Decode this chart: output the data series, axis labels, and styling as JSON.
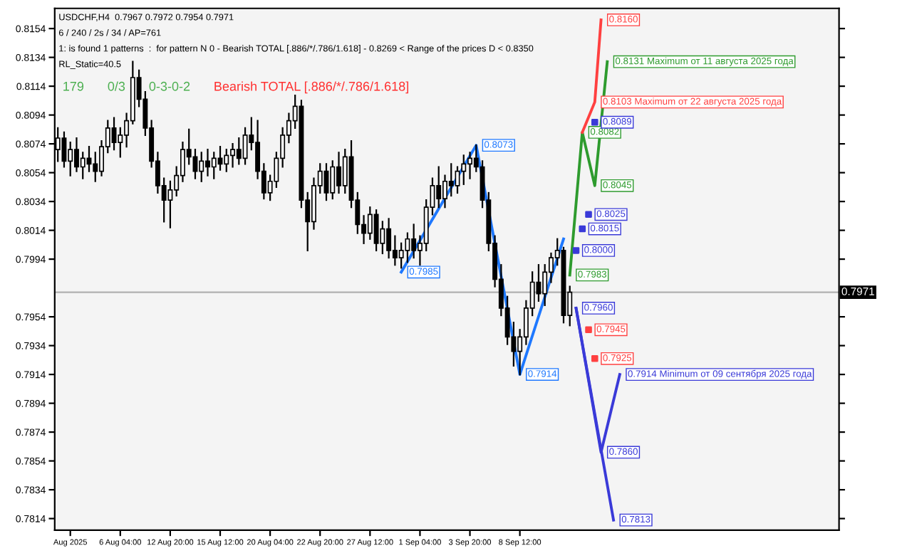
{
  "chart_data": {
    "type": "candlestick",
    "categories": [
      null,
      null,
      "Aug 2025",
      null,
      null,
      null,
      null,
      null,
      null,
      null,
      "6 Aug 04:00",
      null,
      null,
      null,
      null,
      null,
      null,
      null,
      "12 Aug 20:00",
      null,
      null,
      null,
      null,
      null,
      null,
      null,
      "15 Aug 12:00",
      null,
      null,
      null,
      null,
      null,
      null,
      null,
      "20 Aug 04:00",
      null,
      null,
      null,
      null,
      null,
      null,
      null,
      "22 Aug 20:00",
      null,
      null,
      null,
      null,
      null,
      null,
      null,
      "27 Aug 12:00",
      null,
      null,
      null,
      null,
      null,
      null,
      null,
      "1 Sep 04:00",
      null,
      null,
      null,
      null,
      null,
      null,
      null,
      "3 Sep 20:00",
      null,
      null,
      null,
      null,
      null,
      null,
      null,
      "8 Sep 12:00",
      null,
      null,
      null,
      null,
      null,
      null,
      null,
      null,
      null,
      null,
      null,
      null,
      null,
      null,
      null,
      null,
      null
    ],
    "ohlc": [
      [
        0.807,
        0.8085,
        0.8062,
        0.8078
      ],
      [
        0.8078,
        0.8082,
        0.8058,
        0.8062
      ],
      [
        0.8062,
        0.8075,
        0.8052,
        0.807
      ],
      [
        0.807,
        0.8078,
        0.8055,
        0.8058
      ],
      [
        0.8058,
        0.8068,
        0.805,
        0.8064
      ],
      [
        0.8064,
        0.8072,
        0.8055,
        0.806
      ],
      [
        0.806,
        0.8068,
        0.8048,
        0.8055
      ],
      [
        0.8055,
        0.8076,
        0.8052,
        0.8072
      ],
      [
        0.8072,
        0.809,
        0.8068,
        0.8085
      ],
      [
        0.8085,
        0.8092,
        0.807,
        0.8075
      ],
      [
        0.8075,
        0.8085,
        0.8065,
        0.808
      ],
      [
        0.808,
        0.8095,
        0.8072,
        0.809
      ],
      [
        0.809,
        0.8131,
        0.8088,
        0.812
      ],
      [
        0.812,
        0.8125,
        0.81,
        0.8105
      ],
      [
        0.8105,
        0.811,
        0.808,
        0.8085
      ],
      [
        0.8085,
        0.809,
        0.8058,
        0.8062
      ],
      [
        0.8062,
        0.8068,
        0.804,
        0.8045
      ],
      [
        0.8045,
        0.805,
        0.802,
        0.8035
      ],
      [
        0.8035,
        0.8048,
        0.8016,
        0.8042
      ],
      [
        0.8042,
        0.8058,
        0.8038,
        0.8052
      ],
      [
        0.8052,
        0.8075,
        0.8048,
        0.807
      ],
      [
        0.807,
        0.8084,
        0.806,
        0.8065
      ],
      [
        0.8065,
        0.807,
        0.805,
        0.8055
      ],
      [
        0.8055,
        0.8068,
        0.8048,
        0.8062
      ],
      [
        0.8062,
        0.807,
        0.8052,
        0.8058
      ],
      [
        0.8058,
        0.8068,
        0.805,
        0.8064
      ],
      [
        0.8064,
        0.8072,
        0.8056,
        0.806
      ],
      [
        0.806,
        0.807,
        0.8055,
        0.8066
      ],
      [
        0.8066,
        0.8074,
        0.8058,
        0.807
      ],
      [
        0.807,
        0.8078,
        0.806,
        0.8064
      ],
      [
        0.8064,
        0.8085,
        0.806,
        0.808
      ],
      [
        0.808,
        0.8092,
        0.807,
        0.8075
      ],
      [
        0.8075,
        0.809,
        0.805,
        0.8055
      ],
      [
        0.8055,
        0.806,
        0.8036,
        0.804
      ],
      [
        0.804,
        0.8052,
        0.8035,
        0.8048
      ],
      [
        0.8048,
        0.8068,
        0.8044,
        0.8064
      ],
      [
        0.8064,
        0.8085,
        0.8058,
        0.808
      ],
      [
        0.808,
        0.8095,
        0.8075,
        0.809
      ],
      [
        0.809,
        0.8108,
        0.8085,
        0.81
      ],
      [
        0.81,
        0.8104,
        0.803,
        0.8035
      ],
      [
        0.8035,
        0.804,
        0.8,
        0.802
      ],
      [
        0.802,
        0.805,
        0.8015,
        0.8045
      ],
      [
        0.8045,
        0.806,
        0.804,
        0.8055
      ],
      [
        0.8055,
        0.806,
        0.8035,
        0.804
      ],
      [
        0.804,
        0.8062,
        0.8036,
        0.8058
      ],
      [
        0.8058,
        0.8068,
        0.804,
        0.8045
      ],
      [
        0.8045,
        0.807,
        0.804,
        0.8065
      ],
      [
        0.8065,
        0.8076,
        0.803,
        0.8035
      ],
      [
        0.8035,
        0.804,
        0.8012,
        0.8018
      ],
      [
        0.8018,
        0.8024,
        0.8005,
        0.8012
      ],
      [
        0.8012,
        0.803,
        0.8008,
        0.8025
      ],
      [
        0.8025,
        0.8028,
        0.8,
        0.8005
      ],
      [
        0.8005,
        0.802,
        0.7998,
        0.8015
      ],
      [
        0.8015,
        0.8022,
        0.7995,
        0.8
      ],
      [
        0.8,
        0.801,
        0.799,
        0.7995
      ],
      [
        0.7995,
        0.8005,
        0.7988,
        0.8
      ],
      [
        0.8,
        0.8012,
        0.7992,
        0.8008
      ],
      [
        0.8008,
        0.8018,
        0.7995,
        0.8
      ],
      [
        0.8,
        0.801,
        0.799,
        0.8005
      ],
      [
        0.8005,
        0.8035,
        0.8,
        0.803
      ],
      [
        0.803,
        0.805,
        0.8025,
        0.8045
      ],
      [
        0.8045,
        0.8058,
        0.803,
        0.8036
      ],
      [
        0.8036,
        0.8052,
        0.803,
        0.8048
      ],
      [
        0.8048,
        0.806,
        0.8038,
        0.8045
      ],
      [
        0.8045,
        0.8058,
        0.804,
        0.8055
      ],
      [
        0.8055,
        0.8066,
        0.8046,
        0.806
      ],
      [
        0.806,
        0.8068,
        0.805,
        0.8064
      ],
      [
        0.8064,
        0.8073,
        0.8055,
        0.8058
      ],
      [
        0.8058,
        0.8062,
        0.803,
        0.8035
      ],
      [
        0.8035,
        0.804,
        0.8,
        0.8005
      ],
      [
        0.8005,
        0.801,
        0.7975,
        0.798
      ],
      [
        0.798,
        0.799,
        0.7955,
        0.796
      ],
      [
        0.796,
        0.7968,
        0.7935,
        0.794
      ],
      [
        0.794,
        0.795,
        0.792,
        0.793
      ],
      [
        0.793,
        0.7945,
        0.7914,
        0.794
      ],
      [
        0.794,
        0.7965,
        0.7935,
        0.796
      ],
      [
        0.796,
        0.7985,
        0.7955,
        0.7978
      ],
      [
        0.7978,
        0.799,
        0.7965,
        0.797
      ],
      [
        0.797,
        0.799,
        0.7962,
        0.7985
      ],
      [
        0.7985,
        0.7998,
        0.7978,
        0.7995
      ],
      [
        0.7995,
        0.8008,
        0.799,
        0.8
      ],
      [
        0.8,
        0.8002,
        0.795,
        0.7955
      ],
      [
        0.7955,
        0.7975,
        0.7948,
        0.7971
      ],
      null,
      null,
      null,
      null,
      null,
      null,
      null,
      null,
      null
    ],
    "series": [
      {
        "type": "line",
        "color": "#1e78ff",
        "values": [
          null,
          null,
          null,
          null,
          null,
          null,
          null,
          null,
          null,
          null,
          null,
          null,
          null,
          null,
          null,
          null,
          null,
          null,
          null,
          null,
          null,
          null,
          null,
          null,
          null,
          null,
          null,
          null,
          null,
          null,
          null,
          null,
          null,
          null,
          null,
          null,
          null,
          null,
          null,
          null,
          null,
          null,
          null,
          null,
          null,
          null,
          null,
          null,
          null,
          null,
          null,
          null,
          null,
          null,
          null,
          0.7985,
          null,
          null,
          null,
          null,
          null,
          null,
          null,
          null,
          null,
          null,
          null,
          0.8073,
          null,
          null,
          null,
          null,
          null,
          null,
          0.7914,
          null,
          null,
          null,
          null,
          null,
          null,
          0.8008,
          null,
          null,
          null,
          null,
          null,
          null,
          null,
          null,
          null,
          null
        ],
        "value_labels": [
          null,
          null,
          null,
          null,
          null,
          null,
          null,
          null,
          null,
          null,
          null,
          null,
          null,
          null,
          null,
          null,
          null,
          null,
          null,
          null,
          null,
          null,
          null,
          null,
          null,
          null,
          null,
          null,
          null,
          null,
          null,
          null,
          null,
          null,
          null,
          null,
          null,
          null,
          null,
          null,
          null,
          null,
          null,
          null,
          null,
          null,
          null,
          null,
          null,
          null,
          null,
          null,
          null,
          null,
          null,
          "0.7985",
          null,
          null,
          null,
          null,
          null,
          null,
          null,
          null,
          null,
          null,
          null,
          "0.8073",
          null,
          null,
          null,
          null,
          null,
          null,
          "0.7914",
          null,
          null,
          null,
          null,
          null,
          null,
          null,
          null,
          null,
          null,
          null,
          null,
          null,
          null,
          null,
          null,
          null
        ]
      },
      {
        "type": "line",
        "color": "#2e9b2e",
        "values": [
          null,
          null,
          null,
          null,
          null,
          null,
          null,
          null,
          null,
          null,
          null,
          null,
          null,
          null,
          null,
          null,
          null,
          null,
          null,
          null,
          null,
          null,
          null,
          null,
          null,
          null,
          null,
          null,
          null,
          null,
          null,
          null,
          null,
          null,
          null,
          null,
          null,
          null,
          null,
          null,
          null,
          null,
          null,
          null,
          null,
          null,
          null,
          null,
          null,
          null,
          null,
          null,
          null,
          null,
          null,
          null,
          null,
          null,
          null,
          null,
          null,
          null,
          null,
          null,
          null,
          null,
          null,
          null,
          null,
          null,
          null,
          null,
          null,
          null,
          null,
          null,
          null,
          null,
          null,
          null,
          null,
          null,
          0.7983,
          null,
          0.8082,
          null,
          0.8045,
          null,
          0.8131,
          null,
          null,
          null
        ],
        "value_labels": [
          null,
          null,
          null,
          null,
          null,
          null,
          null,
          null,
          null,
          null,
          null,
          null,
          null,
          null,
          null,
          null,
          null,
          null,
          null,
          null,
          null,
          null,
          null,
          null,
          null,
          null,
          null,
          null,
          null,
          null,
          null,
          null,
          null,
          null,
          null,
          null,
          null,
          null,
          null,
          null,
          null,
          null,
          null,
          null,
          null,
          null,
          null,
          null,
          null,
          null,
          null,
          null,
          null,
          null,
          null,
          null,
          null,
          null,
          null,
          null,
          null,
          null,
          null,
          null,
          null,
          null,
          null,
          null,
          null,
          null,
          null,
          null,
          null,
          null,
          null,
          null,
          null,
          null,
          null,
          null,
          null,
          null,
          "0.7983",
          null,
          "0.8082",
          null,
          "0.8045",
          null,
          "0.8131 Maximum от 11 августа 2025 года",
          null,
          null,
          null
        ]
      },
      {
        "type": "line",
        "color": "#ff4040",
        "values": [
          null,
          null,
          null,
          null,
          null,
          null,
          null,
          null,
          null,
          null,
          null,
          null,
          null,
          null,
          null,
          null,
          null,
          null,
          null,
          null,
          null,
          null,
          null,
          null,
          null,
          null,
          null,
          null,
          null,
          null,
          null,
          null,
          null,
          null,
          null,
          null,
          null,
          null,
          null,
          null,
          null,
          null,
          null,
          null,
          null,
          null,
          null,
          null,
          null,
          null,
          null,
          null,
          null,
          null,
          null,
          null,
          null,
          null,
          null,
          null,
          null,
          null,
          null,
          null,
          null,
          null,
          null,
          null,
          null,
          null,
          null,
          null,
          null,
          null,
          null,
          null,
          null,
          null,
          null,
          null,
          null,
          null,
          null,
          null,
          0.8082,
          null,
          0.8103,
          0.816,
          null,
          null,
          null,
          null
        ],
        "value_labels": [
          null,
          null,
          null,
          null,
          null,
          null,
          null,
          null,
          null,
          null,
          null,
          null,
          null,
          null,
          null,
          null,
          null,
          null,
          null,
          null,
          null,
          null,
          null,
          null,
          null,
          null,
          null,
          null,
          null,
          null,
          null,
          null,
          null,
          null,
          null,
          null,
          null,
          null,
          null,
          null,
          null,
          null,
          null,
          null,
          null,
          null,
          null,
          null,
          null,
          null,
          null,
          null,
          null,
          null,
          null,
          null,
          null,
          null,
          null,
          null,
          null,
          null,
          null,
          null,
          null,
          null,
          null,
          null,
          null,
          null,
          null,
          null,
          null,
          null,
          null,
          null,
          null,
          null,
          null,
          null,
          null,
          null,
          null,
          null,
          null,
          null,
          "0.8103 Maximum от 22 августа 2025 года",
          "0.8160",
          null,
          null,
          null,
          null
        ]
      },
      {
        "type": "line",
        "color": "#3a3ad8",
        "values": [
          null,
          null,
          null,
          null,
          null,
          null,
          null,
          null,
          null,
          null,
          null,
          null,
          null,
          null,
          null,
          null,
          null,
          null,
          null,
          null,
          null,
          null,
          null,
          null,
          null,
          null,
          null,
          null,
          null,
          null,
          null,
          null,
          null,
          null,
          null,
          null,
          null,
          null,
          null,
          null,
          null,
          null,
          null,
          null,
          null,
          null,
          null,
          null,
          null,
          null,
          null,
          null,
          null,
          null,
          null,
          null,
          null,
          null,
          null,
          null,
          null,
          null,
          null,
          null,
          null,
          null,
          null,
          null,
          null,
          null,
          null,
          null,
          null,
          null,
          null,
          null,
          null,
          null,
          null,
          null,
          null,
          null,
          null,
          0.796,
          null,
          null,
          null,
          0.786,
          null,
          null,
          0.7914,
          null
        ],
        "value_labels": [
          null,
          null,
          null,
          null,
          null,
          null,
          null,
          null,
          null,
          null,
          null,
          null,
          null,
          null,
          null,
          null,
          null,
          null,
          null,
          null,
          null,
          null,
          null,
          null,
          null,
          null,
          null,
          null,
          null,
          null,
          null,
          null,
          null,
          null,
          null,
          null,
          null,
          null,
          null,
          null,
          null,
          null,
          null,
          null,
          null,
          null,
          null,
          null,
          null,
          null,
          null,
          null,
          null,
          null,
          null,
          null,
          null,
          null,
          null,
          null,
          null,
          null,
          null,
          null,
          null,
          null,
          null,
          null,
          null,
          null,
          null,
          null,
          null,
          null,
          null,
          null,
          null,
          null,
          null,
          null,
          null,
          null,
          null,
          "0.7960",
          null,
          null,
          null,
          "0.7860",
          null,
          null,
          "0.7914 Minimum от 09 сентября 2025 года",
          null
        ]
      },
      {
        "type": "line",
        "color": "#3a3ad8",
        "values": [
          null,
          null,
          null,
          null,
          null,
          null,
          null,
          null,
          null,
          null,
          null,
          null,
          null,
          null,
          null,
          null,
          null,
          null,
          null,
          null,
          null,
          null,
          null,
          null,
          null,
          null,
          null,
          null,
          null,
          null,
          null,
          null,
          null,
          null,
          null,
          null,
          null,
          null,
          null,
          null,
          null,
          null,
          null,
          null,
          null,
          null,
          null,
          null,
          null,
          null,
          null,
          null,
          null,
          null,
          null,
          null,
          null,
          null,
          null,
          null,
          null,
          null,
          null,
          null,
          null,
          null,
          null,
          null,
          null,
          null,
          null,
          null,
          null,
          null,
          null,
          null,
          null,
          null,
          null,
          null,
          null,
          null,
          null,
          0.796,
          null,
          null,
          null,
          null,
          null,
          0.7813,
          null,
          null
        ],
        "value_labels": [
          null,
          null,
          null,
          null,
          null,
          null,
          null,
          null,
          null,
          null,
          null,
          null,
          null,
          null,
          null,
          null,
          null,
          null,
          null,
          null,
          null,
          null,
          null,
          null,
          null,
          null,
          null,
          null,
          null,
          null,
          null,
          null,
          null,
          null,
          null,
          null,
          null,
          null,
          null,
          null,
          null,
          null,
          null,
          null,
          null,
          null,
          null,
          null,
          null,
          null,
          null,
          null,
          null,
          null,
          null,
          null,
          null,
          null,
          null,
          null,
          null,
          null,
          null,
          null,
          null,
          null,
          null,
          null,
          null,
          null,
          null,
          null,
          null,
          null,
          null,
          null,
          null,
          null,
          null,
          null,
          null,
          null,
          null,
          null,
          null,
          null,
          null,
          null,
          null,
          "0.7813",
          null,
          null
        ]
      },
      {
        "type": "scatter",
        "color": "#3a3ad8",
        "marker": "square",
        "values": [
          null,
          null,
          null,
          null,
          null,
          null,
          null,
          null,
          null,
          null,
          null,
          null,
          null,
          null,
          null,
          null,
          null,
          null,
          null,
          null,
          null,
          null,
          null,
          null,
          null,
          null,
          null,
          null,
          null,
          null,
          null,
          null,
          null,
          null,
          null,
          null,
          null,
          null,
          null,
          null,
          null,
          null,
          null,
          null,
          null,
          null,
          null,
          null,
          null,
          null,
          null,
          null,
          null,
          null,
          null,
          null,
          null,
          null,
          null,
          null,
          null,
          null,
          null,
          null,
          null,
          null,
          null,
          null,
          null,
          null,
          null,
          null,
          null,
          null,
          null,
          null,
          null,
          null,
          null,
          null,
          null,
          null,
          null,
          0.8,
          0.8015,
          0.8025,
          0.8089,
          null,
          null,
          null,
          null,
          null
        ],
        "value_labels": [
          null,
          null,
          null,
          null,
          null,
          null,
          null,
          null,
          null,
          null,
          null,
          null,
          null,
          null,
          null,
          null,
          null,
          null,
          null,
          null,
          null,
          null,
          null,
          null,
          null,
          null,
          null,
          null,
          null,
          null,
          null,
          null,
          null,
          null,
          null,
          null,
          null,
          null,
          null,
          null,
          null,
          null,
          null,
          null,
          null,
          null,
          null,
          null,
          null,
          null,
          null,
          null,
          null,
          null,
          null,
          null,
          null,
          null,
          null,
          null,
          null,
          null,
          null,
          null,
          null,
          null,
          null,
          null,
          null,
          null,
          null,
          null,
          null,
          null,
          null,
          null,
          null,
          null,
          null,
          null,
          null,
          null,
          null,
          "0.8000",
          "0.8015",
          "0.8025",
          "0.8089",
          null,
          null,
          null,
          null,
          null
        ]
      },
      {
        "type": "scatter",
        "color": "#ff4040",
        "marker": "square",
        "values": [
          null,
          null,
          null,
          null,
          null,
          null,
          null,
          null,
          null,
          null,
          null,
          null,
          null,
          null,
          null,
          null,
          null,
          null,
          null,
          null,
          null,
          null,
          null,
          null,
          null,
          null,
          null,
          null,
          null,
          null,
          null,
          null,
          null,
          null,
          null,
          null,
          null,
          null,
          null,
          null,
          null,
          null,
          null,
          null,
          null,
          null,
          null,
          null,
          null,
          null,
          null,
          null,
          null,
          null,
          null,
          null,
          null,
          null,
          null,
          null,
          null,
          null,
          null,
          null,
          null,
          null,
          null,
          null,
          null,
          null,
          null,
          null,
          null,
          null,
          null,
          null,
          null,
          null,
          null,
          null,
          null,
          null,
          null,
          null,
          null,
          0.7945,
          0.7925,
          null,
          null,
          null,
          null,
          null
        ],
        "value_labels": [
          null,
          null,
          null,
          null,
          null,
          null,
          null,
          null,
          null,
          null,
          null,
          null,
          null,
          null,
          null,
          null,
          null,
          null,
          null,
          null,
          null,
          null,
          null,
          null,
          null,
          null,
          null,
          null,
          null,
          null,
          null,
          null,
          null,
          null,
          null,
          null,
          null,
          null,
          null,
          null,
          null,
          null,
          null,
          null,
          null,
          null,
          null,
          null,
          null,
          null,
          null,
          null,
          null,
          null,
          null,
          null,
          null,
          null,
          null,
          null,
          null,
          null,
          null,
          null,
          null,
          null,
          null,
          null,
          null,
          null,
          null,
          null,
          null,
          null,
          null,
          null,
          null,
          null,
          null,
          null,
          null,
          null,
          null,
          null,
          null,
          "0.7945",
          "0.7925",
          null,
          null,
          null,
          null,
          null
        ]
      }
    ],
    "ylim": [
      0.7806,
      0.8168
    ],
    "yticks": [
      0.8154,
      0.8134,
      0.8114,
      0.8094,
      0.8074,
      0.8054,
      0.8034,
      0.8014,
      0.7994,
      0.7954,
      0.7934,
      0.7914,
      0.7894,
      0.7874,
      0.7854,
      0.7834,
      0.7814
    ],
    "ref_lines": [
      {
        "axis": "y",
        "value": 0.7971,
        "label": "0.7971",
        "color": "#b0b0b0"
      }
    ],
    "annotations": [
      "USDCHF,H4  0.7967 0.7972 0.7954 0.7971",
      "6 / 240 / 2s / 34 / AP=761",
      "1: is found 1 patterns  :  for pattern N 0 - Bearish TOTAL [.886/*/.786/1.618] - 0.8269 < Range of the prices D < 0.8350",
      "RL_Static=40.5",
      "179",
      "0/3",
      "0-3-0-2",
      "Bearish TOTAL [.886/*/.786/1.618]"
    ]
  }
}
